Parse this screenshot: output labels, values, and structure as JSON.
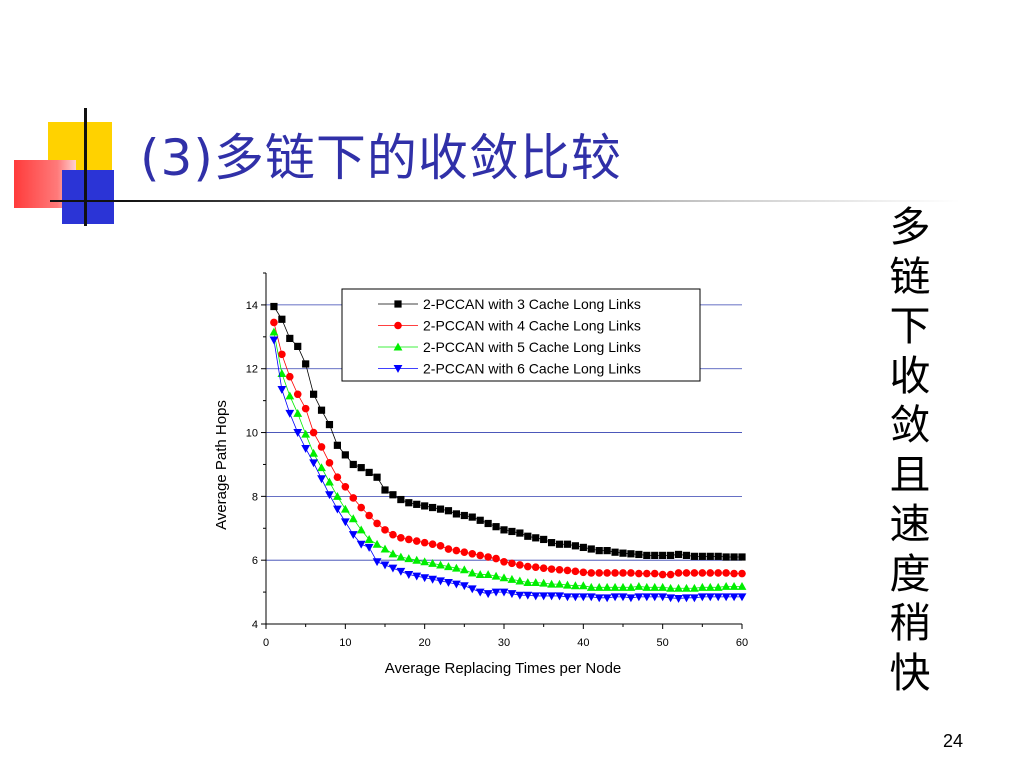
{
  "slide": {
    "title": "(3)多链下的收敛比较",
    "side_note": "多链下收敛且速度稍快",
    "page_number": "24"
  },
  "colors": {
    "title": "#3030a8",
    "grid": "#3340b0",
    "series": [
      "#000000",
      "#ff0000",
      "#00ee00",
      "#0000ff"
    ]
  },
  "chart_data": {
    "type": "line",
    "xlabel": "Average Replacing Times per Node",
    "ylabel": "Average Path Hops",
    "xlim": [
      0,
      60
    ],
    "ylim": [
      4,
      15
    ],
    "xticks": [
      0,
      10,
      20,
      30,
      40,
      50,
      60
    ],
    "yticks": [
      4,
      6,
      8,
      10,
      12,
      14
    ],
    "grid": "horizontal",
    "legend_position": "top-right",
    "x": [
      1,
      2,
      3,
      4,
      5,
      6,
      7,
      8,
      9,
      10,
      11,
      12,
      13,
      14,
      15,
      16,
      17,
      18,
      19,
      20,
      21,
      22,
      23,
      24,
      25,
      26,
      27,
      28,
      29,
      30,
      31,
      32,
      33,
      34,
      35,
      36,
      37,
      38,
      39,
      40,
      41,
      42,
      43,
      44,
      45,
      46,
      47,
      48,
      49,
      50,
      51,
      52,
      53,
      54,
      55,
      56,
      57,
      58,
      59,
      60
    ],
    "series": [
      {
        "name": "2-PCCAN with 3 Cache Long Links",
        "marker": "square",
        "values": [
          13.95,
          13.55,
          12.95,
          12.7,
          12.15,
          11.2,
          10.7,
          10.25,
          9.6,
          9.3,
          9.0,
          8.9,
          8.75,
          8.6,
          8.2,
          8.05,
          7.9,
          7.8,
          7.75,
          7.7,
          7.65,
          7.6,
          7.55,
          7.45,
          7.4,
          7.35,
          7.25,
          7.15,
          7.05,
          6.95,
          6.9,
          6.85,
          6.75,
          6.7,
          6.65,
          6.55,
          6.5,
          6.5,
          6.45,
          6.4,
          6.35,
          6.3,
          6.3,
          6.25,
          6.22,
          6.2,
          6.18,
          6.15,
          6.15,
          6.15,
          6.15,
          6.18,
          6.15,
          6.12,
          6.12,
          6.12,
          6.12,
          6.1,
          6.1,
          6.1
        ]
      },
      {
        "name": "2-PCCAN with 4 Cache Long Links",
        "marker": "circle",
        "values": [
          13.45,
          12.45,
          11.75,
          11.2,
          10.75,
          10.0,
          9.55,
          9.05,
          8.6,
          8.3,
          7.95,
          7.65,
          7.4,
          7.15,
          6.95,
          6.8,
          6.7,
          6.65,
          6.6,
          6.55,
          6.5,
          6.45,
          6.35,
          6.3,
          6.25,
          6.2,
          6.15,
          6.1,
          6.05,
          5.95,
          5.9,
          5.85,
          5.8,
          5.78,
          5.75,
          5.72,
          5.7,
          5.68,
          5.65,
          5.62,
          5.6,
          5.6,
          5.6,
          5.6,
          5.6,
          5.6,
          5.58,
          5.58,
          5.58,
          5.55,
          5.55,
          5.6,
          5.6,
          5.6,
          5.6,
          5.6,
          5.6,
          5.6,
          5.58,
          5.58
        ]
      },
      {
        "name": "2-PCCAN with 5 Cache Long Links",
        "marker": "triangle-up",
        "values": [
          13.15,
          11.85,
          11.15,
          10.6,
          9.95,
          9.35,
          8.9,
          8.45,
          8.0,
          7.6,
          7.3,
          6.95,
          6.65,
          6.5,
          6.35,
          6.2,
          6.1,
          6.05,
          6.0,
          5.95,
          5.9,
          5.85,
          5.8,
          5.75,
          5.7,
          5.6,
          5.55,
          5.55,
          5.5,
          5.45,
          5.4,
          5.35,
          5.3,
          5.3,
          5.28,
          5.25,
          5.25,
          5.22,
          5.2,
          5.2,
          5.15,
          5.15,
          5.15,
          5.15,
          5.15,
          5.15,
          5.18,
          5.15,
          5.15,
          5.15,
          5.12,
          5.12,
          5.12,
          5.12,
          5.15,
          5.15,
          5.15,
          5.18,
          5.18,
          5.18
        ]
      },
      {
        "name": "2-PCCAN with 6 Cache Long Links",
        "marker": "triangle-down",
        "values": [
          12.9,
          11.35,
          10.6,
          10.0,
          9.5,
          9.05,
          8.55,
          8.05,
          7.6,
          7.2,
          6.8,
          6.5,
          6.4,
          5.95,
          5.85,
          5.75,
          5.65,
          5.55,
          5.5,
          5.45,
          5.4,
          5.35,
          5.3,
          5.25,
          5.2,
          5.1,
          5.0,
          4.95,
          5.0,
          5.0,
          4.95,
          4.9,
          4.9,
          4.88,
          4.88,
          4.88,
          4.88,
          4.85,
          4.85,
          4.85,
          4.85,
          4.82,
          4.82,
          4.85,
          4.85,
          4.82,
          4.85,
          4.85,
          4.85,
          4.85,
          4.82,
          4.8,
          4.82,
          4.82,
          4.85,
          4.85,
          4.85,
          4.85,
          4.85,
          4.85
        ]
      }
    ]
  }
}
